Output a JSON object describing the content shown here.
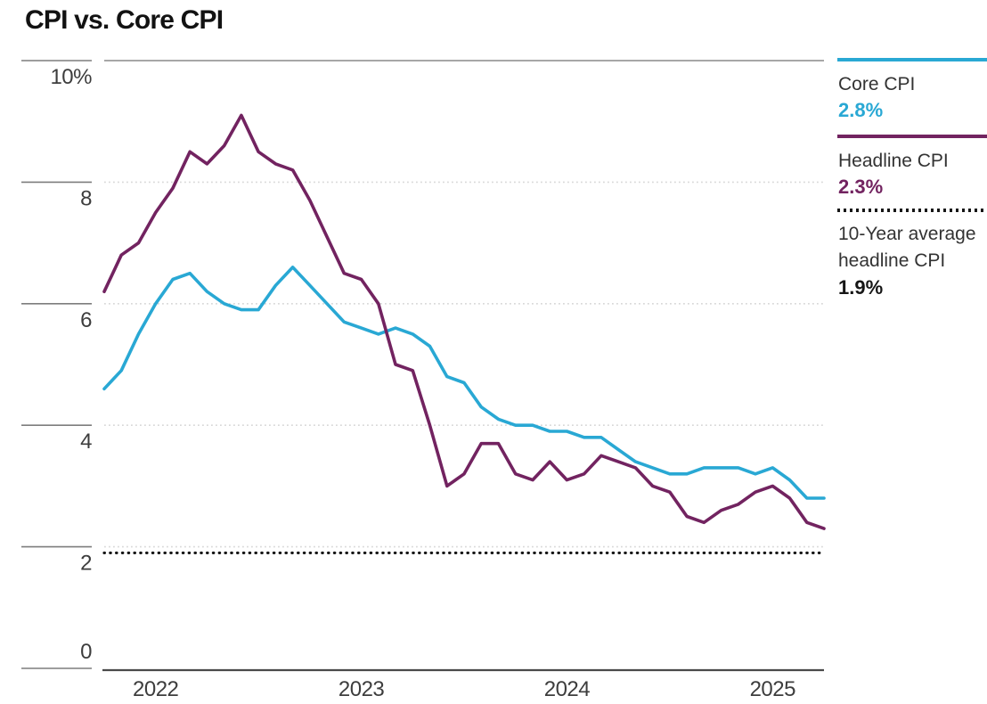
{
  "title": "CPI vs. Core CPI",
  "legend": {
    "core": {
      "label": "Core CPI",
      "value": "2.8%",
      "color": "#29a8d4"
    },
    "headline": {
      "label": "Headline CPI",
      "value": "2.3%",
      "color": "#722360"
    },
    "average": {
      "label": "10-Year average headline CPI",
      "value": "1.9%",
      "color": "#161616"
    }
  },
  "chart_data": {
    "type": "line",
    "title": "CPI vs. Core CPI",
    "xlabel": "",
    "ylabel": "",
    "unit": "%",
    "ylim": [
      0,
      10
    ],
    "grid": "light dotted horizontal lines at 2,4,6,8; solid gray line at 10; solid dark baseline at 0",
    "legend_position": "right",
    "yticks": [
      {
        "value": 10,
        "label": "10%"
      },
      {
        "value": 8,
        "label": "8"
      },
      {
        "value": 6,
        "label": "6"
      },
      {
        "value": 4,
        "label": "4"
      },
      {
        "value": 2,
        "label": "2"
      },
      {
        "value": 0,
        "label": "0"
      }
    ],
    "xticks": [
      {
        "label": "2022",
        "index": 3
      },
      {
        "label": "2023",
        "index": 15
      },
      {
        "label": "2024",
        "index": 27
      },
      {
        "label": "2025",
        "index": 39
      }
    ],
    "x_months": [
      "2021-10",
      "2021-11",
      "2021-12",
      "2022-01",
      "2022-02",
      "2022-03",
      "2022-04",
      "2022-05",
      "2022-06",
      "2022-07",
      "2022-08",
      "2022-09",
      "2022-10",
      "2022-11",
      "2022-12",
      "2023-01",
      "2023-02",
      "2023-03",
      "2023-04",
      "2023-05",
      "2023-06",
      "2023-07",
      "2023-08",
      "2023-09",
      "2023-10",
      "2023-11",
      "2023-12",
      "2024-01",
      "2024-02",
      "2024-03",
      "2024-04",
      "2024-05",
      "2024-06",
      "2024-07",
      "2024-08",
      "2024-09",
      "2024-10",
      "2024-11",
      "2024-12",
      "2025-01",
      "2025-02",
      "2025-03",
      "2025-04"
    ],
    "series": [
      {
        "name": "Core CPI",
        "color": "#29a8d4",
        "latest_label": "2.8%",
        "values": [
          4.6,
          4.9,
          5.5,
          6.0,
          6.4,
          6.5,
          6.2,
          6.0,
          5.9,
          5.9,
          6.3,
          6.6,
          6.3,
          6.0,
          5.7,
          5.6,
          5.5,
          5.6,
          5.5,
          5.3,
          4.8,
          4.7,
          4.3,
          4.1,
          4.0,
          4.0,
          3.9,
          3.9,
          3.8,
          3.8,
          3.6,
          3.4,
          3.3,
          3.2,
          3.2,
          3.3,
          3.3,
          3.3,
          3.2,
          3.3,
          3.1,
          2.8,
          2.8
        ]
      },
      {
        "name": "Headline CPI",
        "color": "#722360",
        "latest_label": "2.3%",
        "values": [
          6.2,
          6.8,
          7.0,
          7.5,
          7.9,
          8.5,
          8.3,
          8.6,
          9.1,
          8.5,
          8.3,
          8.2,
          7.7,
          7.1,
          6.5,
          6.4,
          6.0,
          5.0,
          4.9,
          4.0,
          3.0,
          3.2,
          3.7,
          3.7,
          3.2,
          3.1,
          3.4,
          3.1,
          3.2,
          3.5,
          3.4,
          3.3,
          3.0,
          2.9,
          2.5,
          2.4,
          2.6,
          2.7,
          2.9,
          3.0,
          2.8,
          2.4,
          2.3
        ]
      }
    ],
    "reference_line": {
      "label": "10-Year average headline CPI",
      "value": 1.9,
      "value_label": "1.9%",
      "style": "dotted",
      "color": "#161616"
    }
  }
}
